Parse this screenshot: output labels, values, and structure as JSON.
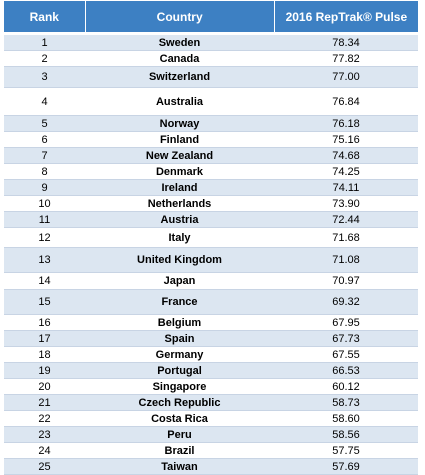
{
  "table": {
    "headers": {
      "rank": "Rank",
      "country": "Country",
      "score": "2016 RepTrak® Pulse"
    },
    "rows": [
      {
        "rank": "1",
        "country": "Sweden",
        "score": "78.34"
      },
      {
        "rank": "2",
        "country": "Canada",
        "score": "77.82"
      },
      {
        "rank": "3",
        "country": "Switzerland",
        "score": "77.00"
      },
      {
        "rank": "4",
        "country": "Australia",
        "score": "76.84"
      },
      {
        "rank": "5",
        "country": "Norway",
        "score": "76.18"
      },
      {
        "rank": "6",
        "country": "Finland",
        "score": "75.16"
      },
      {
        "rank": "7",
        "country": "New Zealand",
        "score": "74.68"
      },
      {
        "rank": "8",
        "country": "Denmark",
        "score": "74.25"
      },
      {
        "rank": "9",
        "country": "Ireland",
        "score": "74.11"
      },
      {
        "rank": "10",
        "country": "Netherlands",
        "score": "73.90"
      },
      {
        "rank": "11",
        "country": "Austria",
        "score": "72.44"
      },
      {
        "rank": "12",
        "country": "Italy",
        "score": "71.68"
      },
      {
        "rank": "13",
        "country": "United Kingdom",
        "score": "71.08"
      },
      {
        "rank": "14",
        "country": "Japan",
        "score": "70.97"
      },
      {
        "rank": "15",
        "country": "France",
        "score": "69.32"
      },
      {
        "rank": "16",
        "country": "Belgium",
        "score": "67.95"
      },
      {
        "rank": "17",
        "country": "Spain",
        "score": "67.73"
      },
      {
        "rank": "18",
        "country": "Germany",
        "score": "67.55"
      },
      {
        "rank": "19",
        "country": "Portugal",
        "score": "66.53"
      },
      {
        "rank": "20",
        "country": "Singapore",
        "score": "60.12"
      },
      {
        "rank": "21",
        "country": "Czech Republic",
        "score": "58.73"
      },
      {
        "rank": "22",
        "country": "Costa Rica",
        "score": "58.60"
      },
      {
        "rank": "23",
        "country": "Peru",
        "score": "58.56"
      },
      {
        "rank": "24",
        "country": "Brazil",
        "score": "57.75"
      },
      {
        "rank": "25",
        "country": "Taiwan",
        "score": "57.69"
      }
    ]
  },
  "colors": {
    "header_bg": "#3d80c3",
    "alt_row_bg": "#dce6f1"
  }
}
